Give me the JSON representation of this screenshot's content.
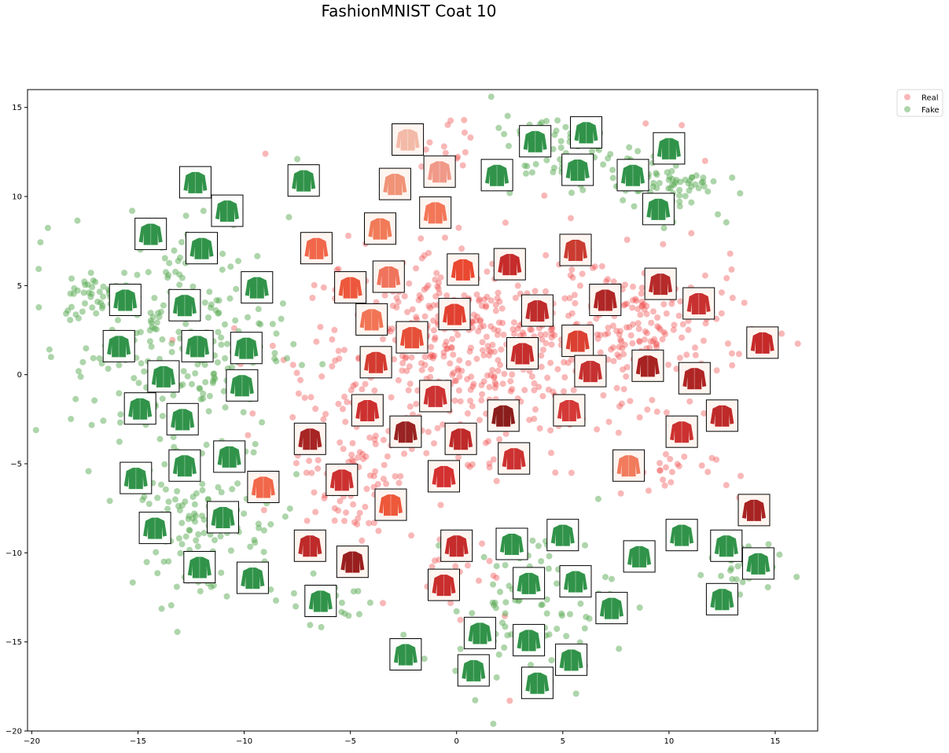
{
  "chart_data": {
    "type": "scatter",
    "title": "FashionMNIST Coat 10",
    "xlabel": "",
    "ylabel": "",
    "xlim": [
      -20.2,
      17.0
    ],
    "ylim": [
      -20.0,
      16.0
    ],
    "xticks": [
      -20,
      -15,
      -10,
      -5,
      0,
      5,
      10,
      15
    ],
    "yticks": [
      -20,
      -15,
      -10,
      -5,
      0,
      5,
      10,
      15
    ],
    "xtick_labels": [
      "−20",
      "−15",
      "−10",
      "−5",
      "0",
      "5",
      "10",
      "15"
    ],
    "ytick_labels": [
      "−20",
      "−15",
      "−10",
      "−5",
      "0",
      "5",
      "10",
      "15"
    ],
    "grid": false,
    "legend": {
      "placement": "outside-top-right",
      "entries": [
        "Real",
        "Fake"
      ]
    },
    "series": [
      {
        "name": "Real",
        "color": "#ef4a4a",
        "clusters": [
          {
            "center": [
              1.0,
              1.5
            ],
            "spread": [
              4.5,
              3.3
            ],
            "count": 520
          },
          {
            "center": [
              9.0,
              2.5
            ],
            "spread": [
              2.8,
              2.2
            ],
            "count": 150
          },
          {
            "center": [
              -5.0,
              -5.0
            ],
            "spread": [
              1.8,
              2.6
            ],
            "count": 90
          },
          {
            "center": [
              0.0,
              -11.0
            ],
            "spread": [
              1.6,
              1.4
            ],
            "count": 25
          },
          {
            "center": [
              9.0,
              -5.5
            ],
            "spread": [
              1.8,
              0.8
            ],
            "count": 25
          },
          {
            "center": [
              -1.0,
              12.5
            ],
            "spread": [
              1.2,
              1.0
            ],
            "count": 20
          }
        ],
        "points": [
          [
            -9.0,
            12.4
          ],
          [
            2.5,
            -18.3
          ],
          [
            -6.5,
            7.8
          ],
          [
            15.3,
            2.3
          ],
          [
            11.7,
            12.0
          ],
          [
            10.6,
            14.0
          ],
          [
            13.3,
            -6.9
          ],
          [
            12.7,
            -6.2
          ],
          [
            8.9,
            14.1
          ],
          [
            4.2,
            6.7
          ]
        ],
        "thumbnails": [
          {
            "x": -2.3,
            "y": 13.2,
            "shade": "#f2b4a2"
          },
          {
            "x": -0.8,
            "y": 11.4,
            "shade": "#ef9080"
          },
          {
            "x": -2.9,
            "y": 10.7,
            "shade": "#ef8a6c"
          },
          {
            "x": -1.0,
            "y": 9.1,
            "shade": "#f26a4a"
          },
          {
            "x": -3.6,
            "y": 8.2,
            "shade": "#f0704c"
          },
          {
            "x": -6.6,
            "y": 7.1,
            "shade": "#f05a3c"
          },
          {
            "x": -5.0,
            "y": 4.9,
            "shade": "#ec4a2c"
          },
          {
            "x": -3.2,
            "y": 5.5,
            "shade": "#ef6850"
          },
          {
            "x": 0.3,
            "y": 5.9,
            "shade": "#e8381f"
          },
          {
            "x": 2.5,
            "y": 6.2,
            "shade": "#c01a1a"
          },
          {
            "x": 5.6,
            "y": 7.0,
            "shade": "#c62a20"
          },
          {
            "x": -4.0,
            "y": 3.1,
            "shade": "#f06848"
          },
          {
            "x": -2.1,
            "y": 2.1,
            "shade": "#e44028"
          },
          {
            "x": -0.1,
            "y": 3.4,
            "shade": "#e03020"
          },
          {
            "x": 3.8,
            "y": 3.6,
            "shade": "#b81a1a"
          },
          {
            "x": 7.0,
            "y": 4.2,
            "shade": "#a81414"
          },
          {
            "x": 9.6,
            "y": 5.1,
            "shade": "#b01818"
          },
          {
            "x": 11.4,
            "y": 4.0,
            "shade": "#c42020"
          },
          {
            "x": 14.4,
            "y": 1.8,
            "shade": "#c01818"
          },
          {
            "x": 5.7,
            "y": 1.9,
            "shade": "#d83020"
          },
          {
            "x": 3.1,
            "y": 1.2,
            "shade": "#c01c1c"
          },
          {
            "x": -3.8,
            "y": 0.7,
            "shade": "#d02a20"
          },
          {
            "x": 6.3,
            "y": 0.2,
            "shade": "#c02020"
          },
          {
            "x": 9.0,
            "y": 0.5,
            "shade": "#a01010"
          },
          {
            "x": 11.2,
            "y": -0.2,
            "shade": "#a81212"
          },
          {
            "x": 12.5,
            "y": -2.3,
            "shade": "#b81818"
          },
          {
            "x": 10.6,
            "y": -3.2,
            "shade": "#c82020"
          },
          {
            "x": -1.0,
            "y": -1.2,
            "shade": "#c82222"
          },
          {
            "x": -4.2,
            "y": -2.0,
            "shade": "#c81e1e"
          },
          {
            "x": -2.4,
            "y": -3.2,
            "shade": "#901010"
          },
          {
            "x": 2.2,
            "y": -2.3,
            "shade": "#800a0a"
          },
          {
            "x": 5.3,
            "y": -2.0,
            "shade": "#d02828"
          },
          {
            "x": 0.2,
            "y": -3.6,
            "shade": "#b81818"
          },
          {
            "x": -6.9,
            "y": -3.6,
            "shade": "#a01212"
          },
          {
            "x": -5.4,
            "y": -5.9,
            "shade": "#c82020"
          },
          {
            "x": -0.6,
            "y": -5.7,
            "shade": "#d02020"
          },
          {
            "x": 2.7,
            "y": -4.7,
            "shade": "#c82020"
          },
          {
            "x": 8.1,
            "y": -5.1,
            "shade": "#f07050"
          },
          {
            "x": -9.1,
            "y": -6.3,
            "shade": "#f05a3c"
          },
          {
            "x": -3.1,
            "y": -7.3,
            "shade": "#ec4a2a"
          },
          {
            "x": 14.0,
            "y": -7.6,
            "shade": "#a01010"
          },
          {
            "x": -6.9,
            "y": -9.6,
            "shade": "#b81818"
          },
          {
            "x": 0.0,
            "y": -9.6,
            "shade": "#c01a1a"
          },
          {
            "x": -4.9,
            "y": -10.5,
            "shade": "#900c0c"
          },
          {
            "x": -0.6,
            "y": -11.8,
            "shade": "#c41c1c"
          }
        ]
      },
      {
        "name": "Fake",
        "color": "#5cac55",
        "clusters": [
          {
            "center": [
              -13.0,
              2.0
            ],
            "spread": [
              3.0,
              4.0
            ],
            "count": 240
          },
          {
            "center": [
              -16.8,
              4.5
            ],
            "spread": [
              1.0,
              0.8
            ],
            "count": 40
          },
          {
            "center": [
              -12.0,
              -8.0
            ],
            "spread": [
              2.2,
              2.8
            ],
            "count": 130
          },
          {
            "center": [
              3.7,
              -13.0
            ],
            "spread": [
              2.2,
              2.6
            ],
            "count": 110
          },
          {
            "center": [
              5.0,
              12.5
            ],
            "spread": [
              2.0,
              1.2
            ],
            "count": 70
          },
          {
            "center": [
              10.0,
              10.5
            ],
            "spread": [
              1.4,
              0.9
            ],
            "count": 70
          },
          {
            "center": [
              13.2,
              -10.5
            ],
            "spread": [
              1.0,
              1.0
            ],
            "count": 40
          },
          {
            "center": [
              -6.0,
              -12.6
            ],
            "spread": [
              1.3,
              0.8
            ],
            "count": 20
          }
        ],
        "points": [
          [
            -7.5,
            12.1
          ],
          [
            -18.3,
            3.6
          ],
          [
            3.0,
            13.5
          ],
          [
            2.5,
            10.2
          ],
          [
            -2.5,
            -14.6
          ],
          [
            15.2,
            -10.1
          ],
          [
            12.3,
            9.0
          ],
          [
            1.7,
            11.6
          ]
        ],
        "thumbnails": [
          {
            "x": -12.3,
            "y": 10.8
          },
          {
            "x": -7.2,
            "y": 10.9
          },
          {
            "x": -10.8,
            "y": 9.2
          },
          {
            "x": -14.4,
            "y": 7.9
          },
          {
            "x": -12.0,
            "y": 7.1
          },
          {
            "x": -15.6,
            "y": 4.2
          },
          {
            "x": -12.8,
            "y": 3.9
          },
          {
            "x": -9.4,
            "y": 4.9
          },
          {
            "x": -15.9,
            "y": 1.6
          },
          {
            "x": -12.2,
            "y": 1.6
          },
          {
            "x": -9.9,
            "y": 1.5
          },
          {
            "x": -13.8,
            "y": -0.1
          },
          {
            "x": -10.1,
            "y": -0.6
          },
          {
            "x": -14.9,
            "y": -1.9
          },
          {
            "x": -12.9,
            "y": -2.5
          },
          {
            "x": -10.7,
            "y": -4.6
          },
          {
            "x": -12.8,
            "y": -5.1
          },
          {
            "x": -15.1,
            "y": -5.8
          },
          {
            "x": -11.0,
            "y": -8.0
          },
          {
            "x": -14.2,
            "y": -8.6
          },
          {
            "x": -12.1,
            "y": -10.8
          },
          {
            "x": -9.6,
            "y": -11.4
          },
          {
            "x": -6.4,
            "y": -12.7
          },
          {
            "x": -2.4,
            "y": -15.7
          },
          {
            "x": 1.1,
            "y": -14.5
          },
          {
            "x": 0.8,
            "y": -16.6
          },
          {
            "x": 3.4,
            "y": -14.9
          },
          {
            "x": 3.8,
            "y": -17.3
          },
          {
            "x": 5.4,
            "y": -16.0
          },
          {
            "x": 2.6,
            "y": -9.5
          },
          {
            "x": 3.4,
            "y": -11.7
          },
          {
            "x": 5.0,
            "y": -9.0
          },
          {
            "x": 5.6,
            "y": -11.6
          },
          {
            "x": 7.3,
            "y": -13.1
          },
          {
            "x": 8.6,
            "y": -10.2
          },
          {
            "x": 10.6,
            "y": -9.0
          },
          {
            "x": 12.7,
            "y": -9.6
          },
          {
            "x": 14.2,
            "y": -10.6
          },
          {
            "x": 12.5,
            "y": -12.6
          },
          {
            "x": 1.9,
            "y": 11.2
          },
          {
            "x": 3.7,
            "y": 13.1
          },
          {
            "x": 6.1,
            "y": 13.6
          },
          {
            "x": 5.7,
            "y": 11.5
          },
          {
            "x": 8.3,
            "y": 11.2
          },
          {
            "x": 10.0,
            "y": 12.7
          },
          {
            "x": 9.5,
            "y": 9.3
          }
        ]
      }
    ]
  }
}
